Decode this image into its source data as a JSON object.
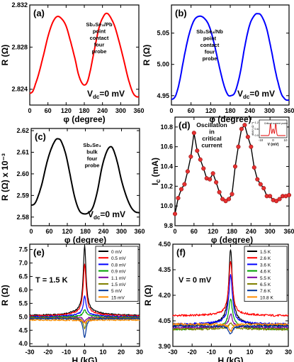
{
  "chart_data": [
    {
      "panel": "a",
      "type": "line",
      "label": "(a)",
      "annotation": [
        "Sb₂Se₃/Pb",
        "point",
        "contact",
        "four",
        "probe"
      ],
      "condition": "V",
      "condition_sub": "dc",
      "condition_val": "=0 mV",
      "xlabel": "φ (degree)",
      "ylabel": "R (Ω)",
      "xlim": [
        0,
        360
      ],
      "ylim": [
        2.8225,
        2.832
      ],
      "xticks": [
        0,
        60,
        120,
        180,
        240,
        300,
        360
      ],
      "yticks": [
        2.824,
        2.828,
        2.832
      ],
      "series": [
        {
          "color": "#ff0000",
          "x": [
            0,
            10,
            20,
            30,
            45,
            60,
            75,
            90,
            105,
            120,
            135,
            150,
            160,
            170,
            180,
            190,
            200,
            215,
            230,
            245,
            255,
            265,
            280,
            295,
            310,
            325,
            340,
            352,
            360
          ],
          "y": [
            2.8236,
            2.8238,
            2.8246,
            2.8255,
            2.8272,
            2.829,
            2.8303,
            2.8309,
            2.8307,
            2.83,
            2.8285,
            2.8268,
            2.8255,
            2.8247,
            2.8244,
            2.8247,
            2.8258,
            2.828,
            2.83,
            2.831,
            2.8312,
            2.8309,
            2.83,
            2.8285,
            2.8268,
            2.825,
            2.8237,
            2.8233,
            2.8233
          ]
        }
      ]
    },
    {
      "panel": "b",
      "type": "line",
      "label": "(b)",
      "annotation": [
        "Sb₂Se₃/Nb",
        "point",
        "contact",
        "four",
        "probe"
      ],
      "condition": "V",
      "condition_sub": "dc",
      "condition_val": "=0 mV",
      "xlabel": "φ (degree)",
      "ylabel": "R (Ω)",
      "xlim": [
        0,
        360
      ],
      "ylim": [
        4.935,
        5.095
      ],
      "xticks": [
        0,
        60,
        120,
        180,
        240,
        300,
        360
      ],
      "yticks": [
        4.95,
        5.0,
        5.05
      ],
      "series": [
        {
          "color": "#0000ff",
          "x": [
            0,
            8,
            15,
            25,
            40,
            55,
            70,
            85,
            100,
            115,
            130,
            145,
            160,
            172,
            182,
            195,
            210,
            225,
            240,
            255,
            265,
            275,
            290,
            305,
            320,
            335,
            345,
            352,
            360
          ],
          "y": [
            4.944,
            4.946,
            4.953,
            4.973,
            5.015,
            5.05,
            5.071,
            5.077,
            5.074,
            5.062,
            5.035,
            5.0,
            4.968,
            4.952,
            4.95,
            4.956,
            4.985,
            5.03,
            5.064,
            5.079,
            5.081,
            5.078,
            5.06,
            5.025,
            4.985,
            4.955,
            4.946,
            4.943,
            4.943
          ]
        }
      ]
    },
    {
      "panel": "c",
      "type": "line",
      "label": "(c)",
      "annotation": [
        "Sb₂Se₃",
        "bulk",
        "four",
        "probe"
      ],
      "condition": "V",
      "condition_sub": "dc",
      "condition_val": "=0 mV",
      "xlabel": "φ (degree)",
      "ylabel": "R (Ω) x 10⁻³",
      "xlim": [
        0,
        360
      ],
      "ylim": [
        2.576,
        2.621
      ],
      "xticks": [
        0,
        60,
        120,
        180,
        240,
        300,
        360
      ],
      "yticks": [
        2.58,
        2.59,
        2.6,
        2.61,
        2.62
      ],
      "series": [
        {
          "color": "#000000",
          "x": [
            0,
            10,
            20,
            35,
            50,
            65,
            80,
            90,
            100,
            115,
            130,
            145,
            160,
            175,
            190,
            205,
            220,
            235,
            250,
            262,
            272,
            285,
            300,
            315,
            330,
            345,
            360
          ],
          "y": [
            2.5855,
            2.586,
            2.5885,
            2.595,
            2.604,
            2.611,
            2.6155,
            2.6162,
            2.615,
            2.609,
            2.599,
            2.589,
            2.583,
            2.5815,
            2.582,
            2.5845,
            2.592,
            2.603,
            2.61,
            2.6125,
            2.6115,
            2.606,
            2.597,
            2.59,
            2.585,
            2.5825,
            2.582
          ]
        }
      ]
    },
    {
      "panel": "d",
      "type": "line",
      "label": "(d)",
      "annotation": [
        "Oscillation",
        "in",
        "critical",
        "current"
      ],
      "xlabel": "φ (degree)",
      "ylabel": "I",
      "ylabel_sub": "c",
      "ylabel_unit": " (mA)",
      "xlim": [
        0,
        360
      ],
      "ylim": [
        9.8,
        10.9
      ],
      "xticks": [
        0,
        60,
        120,
        180,
        240,
        300,
        360
      ],
      "yticks": [
        9.8,
        10.0,
        10.2,
        10.4,
        10.6,
        10.8
      ],
      "series": [
        {
          "color": "#000000",
          "marker": "#e53030",
          "x": [
            0,
            10,
            20,
            30,
            40,
            50,
            60,
            70,
            80,
            90,
            100,
            110,
            120,
            130,
            140,
            150,
            160,
            170,
            180,
            190,
            200,
            210,
            220,
            230,
            240,
            250,
            260,
            270,
            280,
            290,
            300,
            310,
            320,
            330,
            340,
            350,
            360
          ],
          "y": [
            9.92,
            10.08,
            10.17,
            10.22,
            10.35,
            10.5,
            10.74,
            10.56,
            10.47,
            10.38,
            10.28,
            10.27,
            10.33,
            10.24,
            10.14,
            10.07,
            10.05,
            10.07,
            10.12,
            10.4,
            10.6,
            10.78,
            10.82,
            10.7,
            10.6,
            10.39,
            10.27,
            10.22,
            10.18,
            10.1,
            10.1,
            10.06,
            10.05,
            10.07,
            10.1,
            10.1,
            10.11
          ]
        }
      ],
      "inset": {
        "label": "Critical current probe",
        "xlabel": "V (mV)",
        "ylabel": "dI/dV (Ω⁻¹)",
        "xticks": [
          -10,
          0,
          10
        ],
        "yticks": [
          "1.2",
          "0.6",
          "0.0"
        ]
      }
    },
    {
      "panel": "e",
      "type": "line",
      "label": "(e)",
      "condition": "T = 1.5 K",
      "xlabel": "H (kG)",
      "ylabel": "R (Ω)",
      "xlim": [
        -30,
        30
      ],
      "ylim": [
        3.9,
        7.7
      ],
      "xticks": [
        -30,
        -20,
        -10,
        0,
        10,
        20,
        30
      ],
      "yticks": [
        4.0,
        4.5,
        5.0,
        5.5,
        6.0,
        6.5,
        7.0,
        7.5
      ],
      "legend_position": "top-right",
      "series": [
        {
          "name": "0 mV",
          "color": "#000000",
          "center": 7.42,
          "base": 5.05,
          "wing": 5.28,
          "kind": "peak"
        },
        {
          "name": "0.5 mV",
          "color": "#ff0000",
          "center": 6.78,
          "base": 5.03,
          "wing": 5.22,
          "kind": "peak"
        },
        {
          "name": "0.8 mV",
          "color": "#0000ff",
          "center": 5.65,
          "base": 5.0,
          "wing": 5.12,
          "kind": "peak"
        },
        {
          "name": "0.9 mV",
          "color": "#00a000",
          "center": 5.2,
          "base": 4.98,
          "wing": 5.05,
          "kind": "peak"
        },
        {
          "name": "1.1 mV",
          "color": "#7b00a0",
          "center": 4.78,
          "base": 4.96,
          "wing": 5.0,
          "kind": "dip"
        },
        {
          "name": "1.5 mV",
          "color": "#808000",
          "center": 4.55,
          "base": 4.95,
          "wing": 4.97,
          "kind": "dip"
        },
        {
          "name": "5 mV",
          "color": "#003399",
          "center": 4.2,
          "base": 4.93,
          "wing": 4.94,
          "kind": "dip"
        },
        {
          "name": "15 mV",
          "color": "#ff8c00",
          "center": 4.78,
          "base": 4.88,
          "wing": 4.87,
          "kind": "dip"
        }
      ]
    },
    {
      "panel": "f",
      "type": "line",
      "label": "(f)",
      "condition": "V = 0 mV",
      "xlabel": "H (kG)",
      "ylabel": "R (Ω)",
      "xlim": [
        -30,
        30
      ],
      "ylim": [
        3.9,
        4.5
      ],
      "xticks": [
        -30,
        -20,
        -10,
        0,
        10,
        20,
        30
      ],
      "yticks": [
        3.9,
        4.05,
        4.2,
        4.35,
        4.5
      ],
      "legend_position": "top-right",
      "series": [
        {
          "name": "1.5 K",
          "color": "#000000",
          "center": 4.43,
          "base": 4.02,
          "wing": 4.06,
          "kind": "peak"
        },
        {
          "name": "2.6 K",
          "color": "#ff0000",
          "center": 4.38,
          "base": 4.08,
          "wing": 4.1,
          "kind": "peak"
        },
        {
          "name": "3.6 K",
          "color": "#0000ff",
          "center": 4.3,
          "base": 4.03,
          "wing": 4.05,
          "kind": "peak"
        },
        {
          "name": "4.6 K",
          "color": "#00a000",
          "center": 4.15,
          "base": 4.0,
          "wing": 4.03,
          "kind": "peak"
        },
        {
          "name": "5.5 K",
          "color": "#7b00a0",
          "center": 4.08,
          "base": 4.01,
          "wing": 4.02,
          "kind": "peak"
        },
        {
          "name": "6.5 K",
          "color": "#808000",
          "center": 4.03,
          "base": 4.0,
          "wing": 4.01,
          "kind": "peak"
        },
        {
          "name": "7.6 K",
          "color": "#003399",
          "center": 3.97,
          "base": 4.02,
          "wing": 4.02,
          "kind": "dip"
        },
        {
          "name": "10.8 K",
          "color": "#ff8c00",
          "center": 3.99,
          "base": 4.03,
          "wing": 4.03,
          "kind": "dip"
        }
      ]
    }
  ]
}
